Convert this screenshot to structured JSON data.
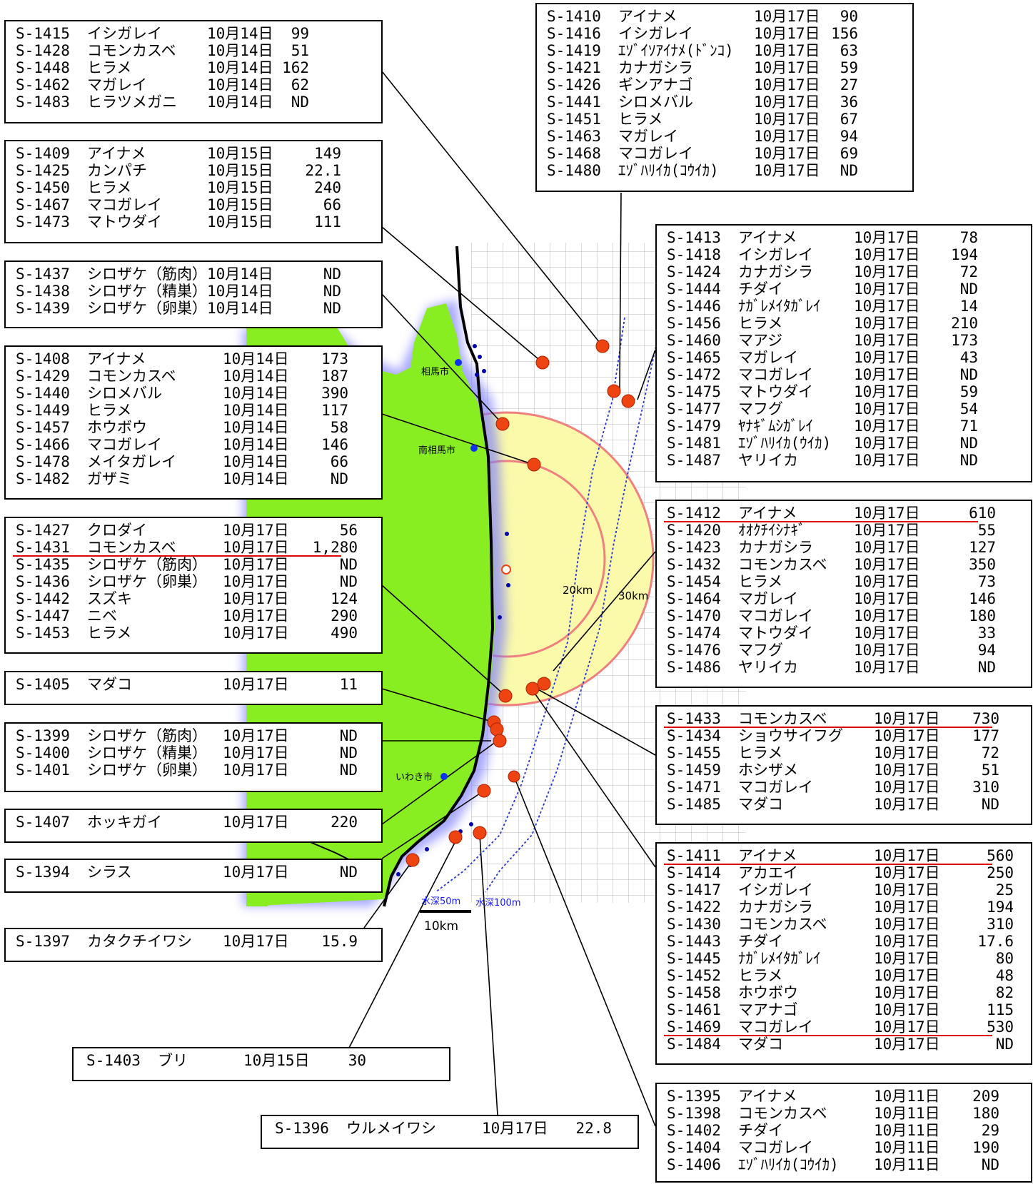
{
  "boxes": [
    {
      "id": "b1",
      "rows": [
        [
          "S-1415",
          "イシガレイ",
          "10月14日",
          "99"
        ],
        [
          "S-1428",
          "コモンカスベ",
          "10月14日",
          "51"
        ],
        [
          "S-1448",
          "ヒラメ",
          "10月14日",
          "162"
        ],
        [
          "S-1462",
          "マガレイ",
          "10月14日",
          "62"
        ],
        [
          "S-1483",
          "ヒラツメガニ",
          "10月14日",
          "ND"
        ]
      ]
    },
    {
      "id": "b2",
      "rows": [
        [
          "S-1409",
          "アイナメ",
          "10月15日",
          "149"
        ],
        [
          "S-1425",
          "カンパチ",
          "10月15日",
          "22.1"
        ],
        [
          "S-1450",
          "ヒラメ",
          "10月15日",
          "240"
        ],
        [
          "S-1467",
          "マコガレイ",
          "10月15日",
          "66"
        ],
        [
          "S-1473",
          "マトウダイ",
          "10月15日",
          "111"
        ]
      ]
    },
    {
      "id": "b3",
      "rows": [
        [
          "S-1437",
          "シロザケ（筋肉）",
          "10月14日",
          "ND"
        ],
        [
          "S-1438",
          "シロザケ（精巣）",
          "10月14日",
          "ND"
        ],
        [
          "S-1439",
          "シロザケ（卵巣）",
          "10月14日",
          "ND"
        ]
      ]
    },
    {
      "id": "b4",
      "rows": [
        [
          "S-1408",
          "アイナメ",
          "10月14日",
          "173"
        ],
        [
          "S-1429",
          "コモンカスベ",
          "10月14日",
          "187"
        ],
        [
          "S-1440",
          "シロメバル",
          "10月14日",
          "390"
        ],
        [
          "S-1449",
          "ヒラメ",
          "10月14日",
          "117"
        ],
        [
          "S-1457",
          "ホウボウ",
          "10月14日",
          "58"
        ],
        [
          "S-1466",
          "マコガレイ",
          "10月14日",
          "146"
        ],
        [
          "S-1478",
          "メイタガレイ",
          "10月14日",
          "66"
        ],
        [
          "S-1482",
          "ガザミ",
          "10月14日",
          "ND"
        ]
      ]
    },
    {
      "id": "b5",
      "rows": [
        [
          "S-1427",
          "クロダイ",
          "10月17日",
          "56"
        ],
        [
          "S-1431",
          "コモンカスベ",
          "10月17日",
          "1,280"
        ],
        [
          "S-1435",
          "シロザケ（筋肉）",
          "10月17日",
          "ND"
        ],
        [
          "S-1436",
          "シロザケ（卵巣）",
          "10月17日",
          "ND"
        ],
        [
          "S-1442",
          "スズキ",
          "10月17日",
          "124"
        ],
        [
          "S-1447",
          "ニベ",
          "10月17日",
          "290"
        ],
        [
          "S-1453",
          "ヒラメ",
          "10月17日",
          "490"
        ]
      ]
    },
    {
      "id": "b6",
      "rows": [
        [
          "S-1405",
          "マダコ",
          "10月17日",
          "11"
        ]
      ]
    },
    {
      "id": "b7",
      "rows": [
        [
          "S-1399",
          "シロザケ（筋肉）",
          "10月17日",
          "ND"
        ],
        [
          "S-1400",
          "シロザケ（精巣）",
          "10月17日",
          "ND"
        ],
        [
          "S-1401",
          "シロザケ（卵巣）",
          "10月17日",
          "ND"
        ]
      ]
    },
    {
      "id": "b8",
      "rows": [
        [
          "S-1407",
          "ホッキガイ",
          "10月17日",
          "220"
        ]
      ]
    },
    {
      "id": "b9",
      "rows": [
        [
          "S-1394",
          "シラス",
          "10月17日",
          "ND"
        ]
      ]
    },
    {
      "id": "b10",
      "rows": [
        [
          "S-1397",
          "カタクチイワシ",
          "10月17日",
          "15.9"
        ]
      ]
    },
    {
      "id": "b11",
      "rows": [
        [
          "S-1403",
          "ブリ",
          "10月15日",
          "30"
        ]
      ]
    },
    {
      "id": "b12",
      "rows": [
        [
          "S-1396",
          "ウルメイワシ",
          "10月17日",
          "22.8"
        ]
      ]
    },
    {
      "id": "b13",
      "rows": [
        [
          "S-1410",
          "アイナメ",
          "10月17日",
          "90"
        ],
        [
          "S-1416",
          "イシガレイ",
          "10月17日",
          "156"
        ],
        [
          "S-1419",
          "ｴｿﾞｲｿｱｲﾅﾒ(ﾄﾞﾝｺ)",
          "10月17日",
          "63"
        ],
        [
          "S-1421",
          "カナガシラ",
          "10月17日",
          "59"
        ],
        [
          "S-1426",
          "ギンアナゴ",
          "10月17日",
          "27"
        ],
        [
          "S-1441",
          "シロメバル",
          "10月17日",
          "36"
        ],
        [
          "S-1451",
          "ヒラメ",
          "10月17日",
          "67"
        ],
        [
          "S-1463",
          "マガレイ",
          "10月17日",
          "94"
        ],
        [
          "S-1468",
          "マコガレイ",
          "10月17日",
          "69"
        ],
        [
          "S-1480",
          "ｴｿﾞﾊﾘｲｶ(ｺｳｲｶ)",
          "10月17日",
          "ND"
        ]
      ]
    },
    {
      "id": "b14",
      "rows": [
        [
          "S-1413",
          "アイナメ",
          "10月17日",
          "78"
        ],
        [
          "S-1418",
          "イシガレイ",
          "10月17日",
          "194"
        ],
        [
          "S-1424",
          "カナガシラ",
          "10月17日",
          "72"
        ],
        [
          "S-1444",
          "チダイ",
          "10月17日",
          "ND"
        ],
        [
          "S-1446",
          "ﾅｶﾞﾚﾒｲﾀｶﾞﾚｲ",
          "10月17日",
          "14"
        ],
        [
          "S-1456",
          "ヒラメ",
          "10月17日",
          "210"
        ],
        [
          "S-1460",
          "マアジ",
          "10月17日",
          "173"
        ],
        [
          "S-1465",
          "マガレイ",
          "10月17日",
          "43"
        ],
        [
          "S-1472",
          "マコガレイ",
          "10月17日",
          "ND"
        ],
        [
          "S-1475",
          "マトウダイ",
          "10月17日",
          "59"
        ],
        [
          "S-1477",
          "マフグ",
          "10月17日",
          "54"
        ],
        [
          "S-1479",
          "ﾔﾅｷﾞﾑｼｶﾞﾚｲ",
          "10月17日",
          "71"
        ],
        [
          "S-1481",
          "ｴｿﾞﾊﾘｲｶ(ｳｲｶ)",
          "10月17日",
          "ND"
        ],
        [
          "S-1487",
          "ヤリイカ",
          "10月17日",
          "ND"
        ]
      ]
    },
    {
      "id": "b15",
      "rows": [
        [
          "S-1412",
          "アイナメ",
          "10月17日",
          "610"
        ],
        [
          "S-1420",
          "ｵｵｸﾁｲｼﾅｷﾞ",
          "10月17日",
          "55"
        ],
        [
          "S-1423",
          "カナガシラ",
          "10月17日",
          "127"
        ],
        [
          "S-1432",
          "コモンカスベ",
          "10月17日",
          "350"
        ],
        [
          "S-1454",
          "ヒラメ",
          "10月17日",
          "73"
        ],
        [
          "S-1464",
          "マガレイ",
          "10月17日",
          "146"
        ],
        [
          "S-1470",
          "マコガレイ",
          "10月17日",
          "180"
        ],
        [
          "S-1474",
          "マトウダイ",
          "10月17日",
          "33"
        ],
        [
          "S-1476",
          "マフグ",
          "10月17日",
          "94"
        ],
        [
          "S-1486",
          "ヤリイカ",
          "10月17日",
          "ND"
        ]
      ]
    },
    {
      "id": "b16",
      "rows": [
        [
          "S-1433",
          "コモンカスベ",
          "10月17日",
          "730"
        ],
        [
          "S-1434",
          "ショウサイフグ",
          "10月17日",
          "177"
        ],
        [
          "S-1455",
          "ヒラメ",
          "10月17日",
          "72"
        ],
        [
          "S-1459",
          "ホシザメ",
          "10月17日",
          "51"
        ],
        [
          "S-1471",
          "マコガレイ",
          "10月17日",
          "310"
        ],
        [
          "S-1485",
          "マダコ",
          "10月17日",
          "ND"
        ]
      ]
    },
    {
      "id": "b17",
      "rows": [
        [
          "S-1411",
          "アイナメ",
          "10月17日",
          "560"
        ],
        [
          "S-1414",
          "アカエイ",
          "10月17日",
          "250"
        ],
        [
          "S-1417",
          "イシガレイ",
          "10月17日",
          "25"
        ],
        [
          "S-1422",
          "カナガシラ",
          "10月17日",
          "194"
        ],
        [
          "S-1430",
          "コモンカスベ",
          "10月17日",
          "310"
        ],
        [
          "S-1443",
          "チダイ",
          "10月17日",
          "17.6"
        ],
        [
          "S-1445",
          "ﾅｶﾞﾚﾒｲﾀｶﾞﾚｲ",
          "10月17日",
          "80"
        ],
        [
          "S-1452",
          "ヒラメ",
          "10月17日",
          "48"
        ],
        [
          "S-1458",
          "ホウボウ",
          "10月17日",
          "82"
        ],
        [
          "S-1461",
          "マアナゴ",
          "10月17日",
          "115"
        ],
        [
          "S-1469",
          "マコガレイ",
          "10月17日",
          "530"
        ],
        [
          "S-1484",
          "マダコ",
          "10月17日",
          "ND"
        ]
      ]
    },
    {
      "id": "b18",
      "rows": [
        [
          "S-1395",
          "アイナメ",
          "10月11日",
          "209"
        ],
        [
          "S-1398",
          "コモンカスベ",
          "10月11日",
          "180"
        ],
        [
          "S-1402",
          "チダイ",
          "10月11日",
          "29"
        ],
        [
          "S-1404",
          "マコガレイ",
          "10月11日",
          "190"
        ],
        [
          "S-1406",
          "ｴｿﾞﾊﾘｲｶ(ｺｳｲｶ)",
          "10月11日",
          "ND"
        ]
      ]
    }
  ],
  "map_labels": {
    "soma": "相馬市",
    "minamisoma": "南相馬市",
    "iwaki": "いわき市",
    "ring20": "20km",
    "ring30": "30km",
    "depth50": "水深50m",
    "depth100": "水深100m",
    "scale": "10km"
  },
  "colors": {
    "land": "#88ee22",
    "zone30": "#fafaaa",
    "ring": "#f08080",
    "sample_point": "#ee4411",
    "city_dot": "#1133ee",
    "depth_line": "#2233dd",
    "highlight": "#e00000"
  }
}
